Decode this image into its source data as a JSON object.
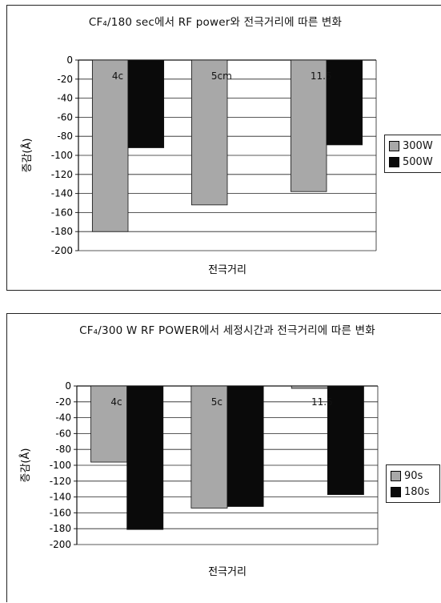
{
  "chart_data": [
    {
      "type": "bar",
      "title": "CF₄/180 sec에서 RF power와 전극거리에 따른 변화",
      "xlabel": "전극거리",
      "ylabel": "증감(Å)",
      "categories": [
        "4cm",
        "5cm",
        "11.5cm"
      ],
      "category_labels_visible": [
        "4c",
        "5cm",
        "11.5"
      ],
      "series": [
        {
          "name": "300W",
          "values": [
            -180,
            -152,
            -138
          ],
          "color": "#a8a8a8"
        },
        {
          "name": "500W",
          "values": [
            -92,
            null,
            -89
          ],
          "color": "#0a0a0a"
        }
      ],
      "ylim": [
        -200,
        0
      ],
      "yticks": [
        0,
        -20,
        -40,
        -60,
        -80,
        -100,
        -120,
        -140,
        -160,
        -180,
        -200
      ],
      "grid": true,
      "legend": "right"
    },
    {
      "type": "bar",
      "title": "CF₄/300 W RF POWER에서 세정시간과 전극거리에 따른 변화",
      "xlabel": "전극거리",
      "ylabel": "증감(Å)",
      "categories": [
        "4cm",
        "5cm",
        "11.5cm"
      ],
      "category_labels_visible": [
        "4c",
        "5c",
        "11.5"
      ],
      "series": [
        {
          "name": "90s",
          "values": [
            -96,
            -154,
            -3
          ],
          "color": "#a8a8a8"
        },
        {
          "name": "180s",
          "values": [
            -181,
            -152,
            -137
          ],
          "color": "#0a0a0a"
        }
      ],
      "ylim": [
        -200,
        0
      ],
      "yticks": [
        0,
        -20,
        -40,
        -60,
        -80,
        -100,
        -120,
        -140,
        -160,
        -180,
        -200
      ],
      "grid": true,
      "legend": "right"
    }
  ]
}
